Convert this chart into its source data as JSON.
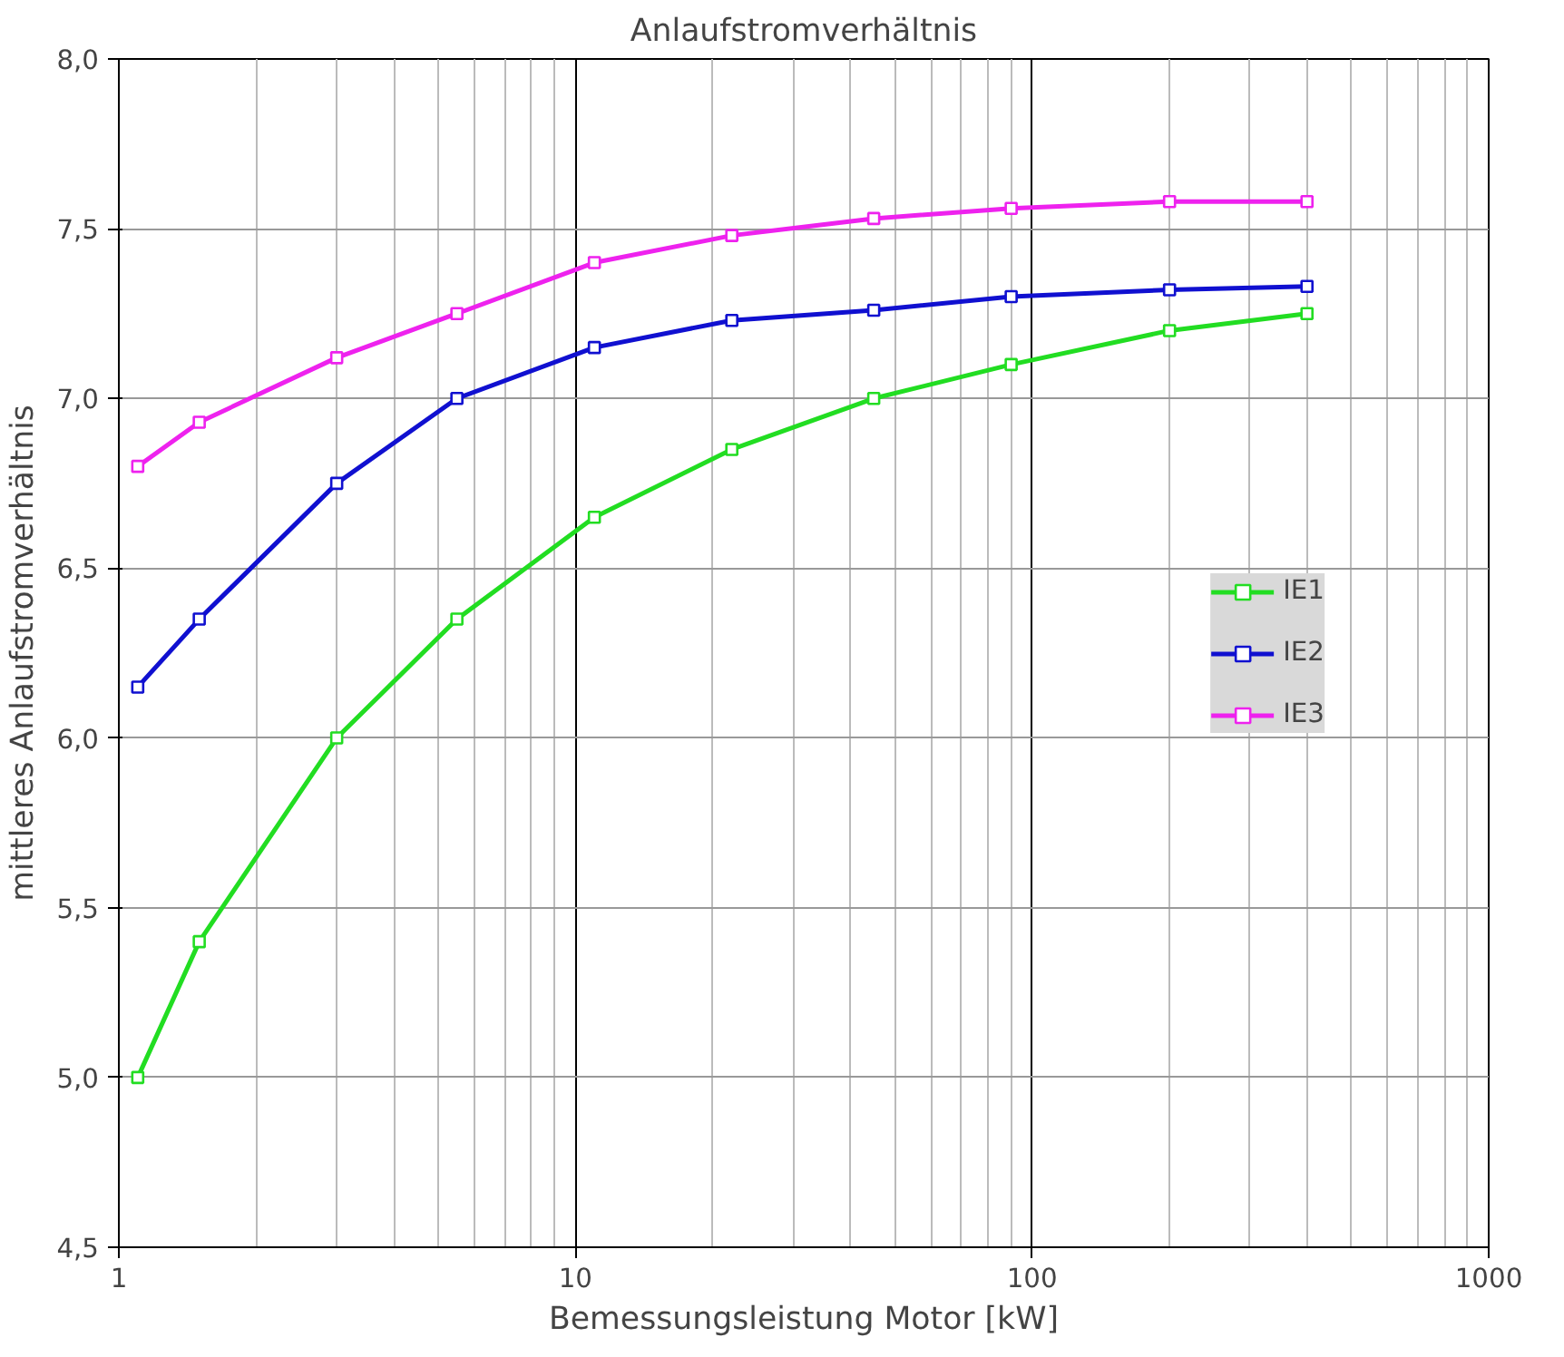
{
  "chart_data": {
    "type": "line",
    "title": "Anlaufstromverhältnis",
    "xlabel": "Bemessungsleistung Motor [kW]",
    "ylabel": "mittleres Anlaufstromverhältnis",
    "x": [
      1.1,
      1.5,
      3,
      5.5,
      11,
      22,
      45,
      90,
      200,
      400
    ],
    "series": [
      {
        "name": "IE1",
        "color": "#22dd22",
        "values": [
          5.0,
          5.4,
          6.0,
          6.35,
          6.65,
          6.85,
          7.0,
          7.1,
          7.2,
          7.25
        ]
      },
      {
        "name": "IE2",
        "color": "#1010d0",
        "values": [
          6.15,
          6.35,
          6.75,
          7.0,
          7.15,
          7.23,
          7.26,
          7.3,
          7.32,
          7.33
        ]
      },
      {
        "name": "IE3",
        "color": "#ee22ee",
        "values": [
          6.8,
          6.93,
          7.12,
          7.25,
          7.4,
          7.48,
          7.53,
          7.56,
          7.58,
          7.58
        ]
      }
    ],
    "log": "x",
    "xlim": [
      1,
      1000
    ],
    "xticks": [
      1,
      10,
      100,
      1000
    ],
    "ylim": [
      4.5,
      8.0
    ],
    "yticks": [
      {
        "value": 4.5,
        "label": "4,5"
      },
      {
        "value": 5.0,
        "label": "5,0"
      },
      {
        "value": 5.5,
        "label": "5,5"
      },
      {
        "value": 6.0,
        "label": "6,0"
      },
      {
        "value": 6.5,
        "label": "6,5"
      },
      {
        "value": 7.0,
        "label": "7,0"
      },
      {
        "value": 7.5,
        "label": "7,5"
      },
      {
        "value": 8.0,
        "label": "8,0"
      }
    ],
    "grid": true,
    "legend": "right",
    "marker": "square",
    "line_style": "solid"
  }
}
